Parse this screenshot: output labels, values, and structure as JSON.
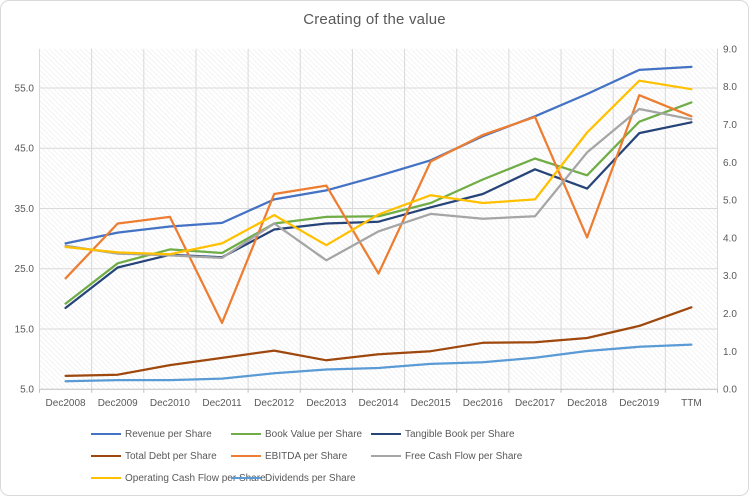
{
  "chart": {
    "title": "Creating of the value",
    "title_color": "#595959",
    "text_color": "#595959",
    "gridline_color": "#d9d9d9",
    "axis_line_color": "#bfbfbf",
    "hatch_color": "#e7e7e7",
    "border_color": "#d9d9d9"
  },
  "chart_data": {
    "type": "line",
    "title": "Creating of the value",
    "categories": [
      "Dec2008",
      "Dec2009",
      "Dec2010",
      "Dec2011",
      "Dec2012",
      "Dec2013",
      "Dec2014",
      "Dec2015",
      "Dec2016",
      "Dec2017",
      "Dec2018",
      "Dec2019",
      "TTM"
    ],
    "series": [
      {
        "name": "Revenue per Share",
        "color": "#4472C4",
        "axis": "left",
        "values": [
          29.2,
          31.0,
          32.0,
          32.6,
          36.5,
          38.0,
          40.4,
          43.0,
          47.0,
          50.3,
          54.0,
          58.0,
          58.5
        ]
      },
      {
        "name": "Book Value per Share",
        "color": "#70AD47",
        "axis": "left",
        "values": [
          19.2,
          25.9,
          28.2,
          27.6,
          32.5,
          33.6,
          33.7,
          35.9,
          39.8,
          43.3,
          40.5,
          49.4,
          52.6
        ]
      },
      {
        "name": "Tangible Book per Share",
        "color": "#264478",
        "axis": "left",
        "values": [
          18.5,
          25.2,
          27.3,
          26.9,
          31.5,
          32.5,
          32.8,
          35.2,
          37.4,
          41.5,
          38.3,
          47.5,
          49.3
        ]
      },
      {
        "name": "Total Debt per Share",
        "color": "#9E480E",
        "axis": "left",
        "values": [
          7.2,
          7.4,
          9.0,
          10.2,
          11.4,
          9.8,
          10.8,
          11.3,
          12.7,
          12.8,
          13.5,
          15.5,
          18.6
        ]
      },
      {
        "name": "EBITDA per Share",
        "color": "#ED7D31",
        "axis": "left",
        "values": [
          23.4,
          32.5,
          33.6,
          16.0,
          37.4,
          38.8,
          24.2,
          42.8,
          47.2,
          50.2,
          30.2,
          53.8,
          50.3
        ]
      },
      {
        "name": "Free Cash Flow per Share",
        "color": "#A5A5A5",
        "axis": "left",
        "values": [
          28.8,
          27.5,
          27.2,
          26.8,
          32.5,
          26.4,
          31.2,
          34.1,
          33.3,
          33.7,
          44.3,
          51.5,
          49.8
        ]
      },
      {
        "name": "Operating Cash Flow per Share",
        "color": "#FFC000",
        "axis": "left",
        "values": [
          28.6,
          27.7,
          27.4,
          29.2,
          33.9,
          28.9,
          34.0,
          37.2,
          35.9,
          36.5,
          47.6,
          56.2,
          54.8
        ]
      },
      {
        "name": "Dividends per Share",
        "color": "#5B9BD5",
        "axis": "right",
        "values": [
          0.21,
          0.24,
          0.24,
          0.28,
          0.42,
          0.52,
          0.56,
          0.67,
          0.71,
          0.83,
          1.01,
          1.12,
          1.18
        ]
      }
    ],
    "left_axis": {
      "tick_values": [
        5,
        15,
        25,
        35,
        45,
        55
      ],
      "tick_labels": [
        "5.0",
        "15.0",
        "25.0",
        "35.0",
        "45.0",
        "55.0"
      ],
      "min": 5,
      "plot_top_value": 61.5
    },
    "right_axis": {
      "tick_values": [
        0,
        1,
        2,
        3,
        4,
        5,
        6,
        7,
        8,
        9
      ],
      "tick_labels": [
        "0.0",
        "1.0",
        "2.0",
        "3.0",
        "4.0",
        "5.0",
        "6.0",
        "7.0",
        "8.0",
        "9.0"
      ],
      "min": 0,
      "max": 9
    },
    "legend_position": "bottom",
    "grid": true,
    "plot_background": "diagonal-hatch"
  }
}
